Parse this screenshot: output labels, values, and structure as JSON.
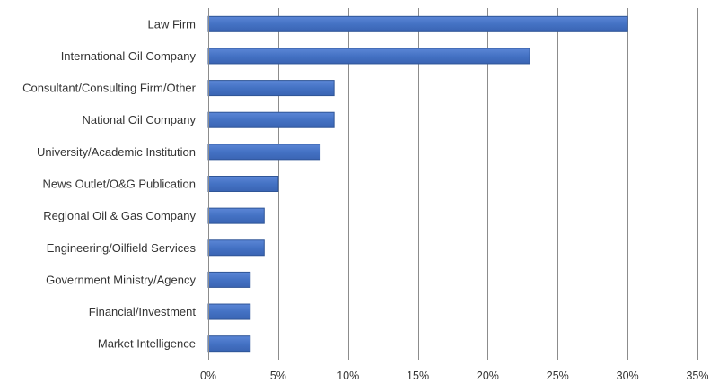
{
  "chart_data": {
    "type": "bar",
    "orientation": "horizontal",
    "title": "",
    "xlabel": "",
    "ylabel": "",
    "categories": [
      "Law Firm",
      "International Oil Company",
      "Consultant/Consulting Firm/Other",
      "National Oil Company",
      "University/Academic Institution",
      "News Outlet/O&G Publication",
      "Regional Oil & Gas Company",
      "Engineering/Oilfield Services",
      "Government Ministry/Agency",
      "Financial/Investment",
      "Market Intelligence"
    ],
    "values": [
      30,
      23,
      9,
      9,
      8,
      5,
      4,
      4,
      3,
      3,
      3
    ],
    "unit": "%",
    "xlim": [
      0,
      35
    ],
    "xticks": [
      0,
      5,
      10,
      15,
      20,
      25,
      30,
      35
    ],
    "xtick_labels": [
      "0%",
      "5%",
      "10%",
      "15%",
      "20%",
      "25%",
      "30%",
      "35%"
    ],
    "grid": "vertical",
    "legend": "none",
    "bar_color": "#4472c4",
    "bar_edge_color": "#2f5597"
  }
}
